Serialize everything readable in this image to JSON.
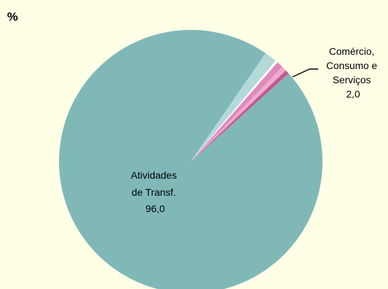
{
  "chart_data": {
    "type": "pie",
    "unit_label": "%",
    "start_angle_deg": 42,
    "slices": [
      {
        "name": "Atividades de Transf.",
        "value": 96.0,
        "color": "#80b8b8"
      },
      {
        "name": "",
        "value": 1.5,
        "color": "#b3d9d9"
      },
      {
        "name": "",
        "value": 0.3,
        "color": "#ffffff"
      },
      {
        "name": "",
        "value": 0.8,
        "color": "#df88bc"
      },
      {
        "name": "",
        "value": 0.6,
        "color": "#efaad0"
      },
      {
        "name": "",
        "value": 0.5,
        "color": "#c1588f"
      }
    ],
    "labels": {
      "main": [
        "Atividades",
        "de Transf.",
        "96,0"
      ],
      "callout": [
        "Comércio,",
        "Consumo e",
        "Serviços",
        "2,0"
      ]
    }
  }
}
